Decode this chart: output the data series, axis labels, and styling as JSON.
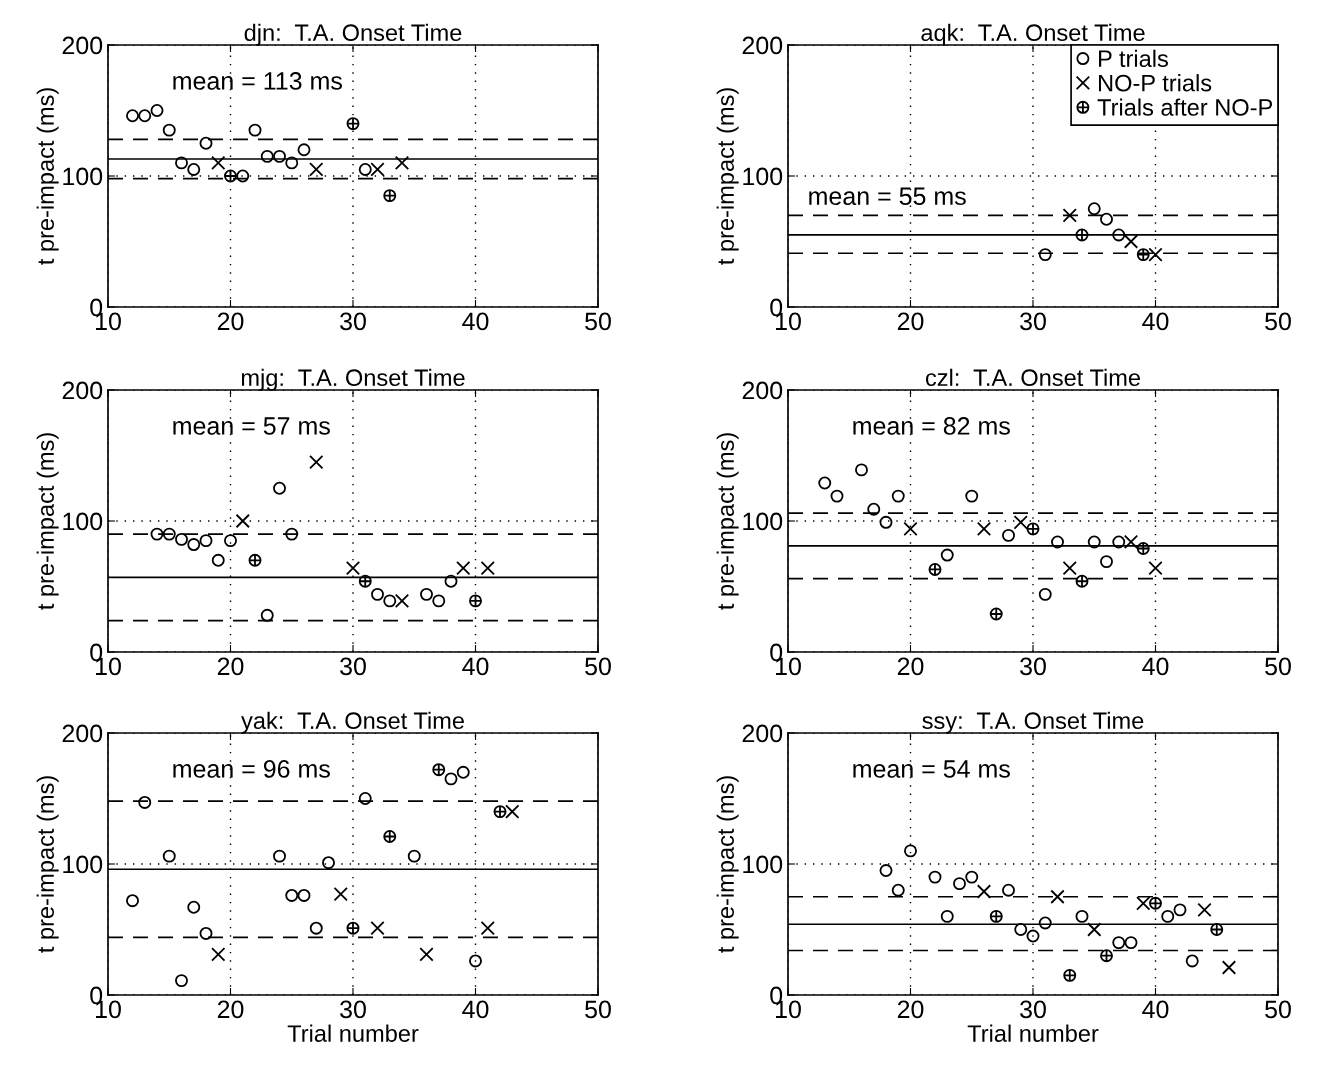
{
  "chart_data": [
    {
      "type": "scatter",
      "title": "djn:  T.A. Onset Time",
      "ylabel": "t pre-impact (ms)",
      "annotations": [
        "mean = 113 ms"
      ],
      "xlim": [
        10,
        50
      ],
      "xticks": [
        10,
        20,
        30,
        40,
        50
      ],
      "ylim": [
        0,
        200
      ],
      "yticks": [
        0,
        100,
        200
      ],
      "grid": true,
      "ref_lines": [
        {
          "axis": "y",
          "value": 113,
          "line_style": "solid"
        },
        {
          "axis": "y",
          "value": 128,
          "line_style": "dashed"
        },
        {
          "axis": "y",
          "value": 98,
          "line_style": "dashed"
        }
      ],
      "series": [
        {
          "marker": "circle",
          "color": "#000000",
          "x": [
            12,
            13,
            14,
            15,
            16,
            17,
            18,
            21,
            22,
            23,
            24,
            25,
            26,
            31
          ],
          "values": [
            146,
            146,
            150,
            135,
            110,
            105,
            125,
            100,
            135,
            115,
            115,
            110,
            120,
            105
          ]
        },
        {
          "marker": "cross",
          "color": "#000000",
          "x": [
            19,
            27,
            32,
            34
          ],
          "values": [
            110,
            105,
            105,
            110
          ]
        },
        {
          "color": "#000000",
          "x": [
            20,
            30,
            33
          ],
          "values": [
            100,
            140,
            85
          ]
        }
      ]
    },
    {
      "type": "scatter",
      "title": "aqk:  T.A. Onset Time",
      "ylabel": "t pre-impact (ms)",
      "annotations": [
        "mean = 55 ms"
      ],
      "xlim": [
        10,
        50
      ],
      "xticks": [
        10,
        20,
        30,
        40,
        50
      ],
      "ylim": [
        0,
        200
      ],
      "yticks": [
        0,
        100,
        200
      ],
      "grid": true,
      "legend": "top right",
      "ref_lines": [
        {
          "axis": "y",
          "value": 55,
          "line_style": "solid"
        },
        {
          "axis": "y",
          "value": 70,
          "line_style": "dashed"
        },
        {
          "axis": "y",
          "value": 41,
          "line_style": "dashed"
        }
      ],
      "series": [
        {
          "name": "P trials",
          "marker": "circle",
          "color": "#000000",
          "x": [
            31,
            35,
            36,
            37
          ],
          "values": [
            40,
            75,
            67,
            55
          ]
        },
        {
          "name": "NO-P trials",
          "marker": "cross",
          "color": "#000000",
          "x": [
            33,
            38,
            40
          ],
          "values": [
            70,
            50,
            40
          ]
        },
        {
          "name": "Trials after NO-P",
          "color": "#000000",
          "x": [
            34,
            39
          ],
          "values": [
            55,
            40
          ]
        }
      ]
    },
    {
      "type": "scatter",
      "title": "mjg:  T.A. Onset Time",
      "ylabel": "t pre-impact (ms)",
      "annotations": [
        "mean = 57 ms"
      ],
      "xlim": [
        10,
        50
      ],
      "xticks": [
        10,
        20,
        30,
        40,
        50
      ],
      "ylim": [
        0,
        200
      ],
      "yticks": [
        0,
        100,
        200
      ],
      "grid": true,
      "ref_lines": [
        {
          "axis": "y",
          "value": 57,
          "line_style": "solid"
        },
        {
          "axis": "y",
          "value": 90,
          "line_style": "dashed"
        },
        {
          "axis": "y",
          "value": 24,
          "line_style": "dashed"
        }
      ],
      "series": [
        {
          "marker": "circle",
          "color": "#000000",
          "x": [
            14,
            15,
            16,
            17,
            18,
            19,
            20,
            23,
            24,
            25,
            32,
            33,
            36,
            37,
            38
          ],
          "values": [
            90,
            90,
            86,
            82,
            85,
            70,
            85,
            28,
            125,
            90,
            44,
            39,
            44,
            39,
            54
          ]
        },
        {
          "marker": "cross",
          "color": "#000000",
          "x": [
            21,
            27,
            30,
            34,
            39,
            41
          ],
          "values": [
            100,
            145,
            64,
            39,
            64,
            64
          ]
        },
        {
          "color": "#000000",
          "x": [
            22,
            31,
            40
          ],
          "values": [
            70,
            54,
            39
          ]
        }
      ]
    },
    {
      "type": "scatter",
      "title": "czl:  T.A. Onset Time",
      "ylabel": "t pre-impact (ms)",
      "annotations": [
        "mean = 82 ms"
      ],
      "xlim": [
        10,
        50
      ],
      "xticks": [
        10,
        20,
        30,
        40,
        50
      ],
      "ylim": [
        0,
        200
      ],
      "yticks": [
        0,
        100,
        200
      ],
      "grid": true,
      "ref_lines": [
        {
          "axis": "y",
          "value": 81,
          "line_style": "solid"
        },
        {
          "axis": "y",
          "value": 106,
          "line_style": "dashed"
        },
        {
          "axis": "y",
          "value": 56,
          "line_style": "dashed"
        }
      ],
      "series": [
        {
          "marker": "circle",
          "color": "#000000",
          "x": [
            13,
            14,
            16,
            17,
            18,
            19,
            23,
            25,
            28,
            31,
            32,
            35,
            36,
            37
          ],
          "values": [
            129,
            119,
            139,
            109,
            99,
            119,
            74,
            119,
            89,
            44,
            84,
            84,
            69,
            84
          ]
        },
        {
          "marker": "cross",
          "color": "#000000",
          "x": [
            20,
            26,
            29,
            33,
            38,
            40
          ],
          "values": [
            94,
            94,
            99,
            64,
            84,
            64
          ]
        },
        {
          "color": "#000000",
          "x": [
            22,
            27,
            30,
            34,
            39
          ],
          "values": [
            63,
            29,
            94,
            54,
            79
          ]
        }
      ]
    },
    {
      "type": "scatter",
      "title": "yak:  T.A. Onset Time",
      "xlabel": "Trial number",
      "ylabel": "t pre-impact (ms)",
      "annotations": [
        "mean = 96 ms"
      ],
      "xlim": [
        10,
        50
      ],
      "xticks": [
        10,
        20,
        30,
        40,
        50
      ],
      "ylim": [
        0,
        200
      ],
      "yticks": [
        0,
        100,
        200
      ],
      "grid": true,
      "ref_lines": [
        {
          "axis": "y",
          "value": 96,
          "line_style": "solid"
        },
        {
          "axis": "y",
          "value": 148,
          "line_style": "dashed"
        },
        {
          "axis": "y",
          "value": 44,
          "line_style": "dashed"
        }
      ],
      "series": [
        {
          "marker": "circle",
          "color": "#000000",
          "x": [
            12,
            13,
            15,
            16,
            17,
            18,
            24,
            25,
            26,
            27,
            28,
            31,
            35,
            38,
            39,
            40
          ],
          "values": [
            72,
            147,
            106,
            11,
            67,
            47,
            106,
            76,
            76,
            51,
            101,
            150,
            106,
            165,
            170,
            26
          ]
        },
        {
          "marker": "cross",
          "color": "#000000",
          "x": [
            19,
            29,
            32,
            36,
            41,
            43
          ],
          "values": [
            31,
            77,
            51,
            31,
            51,
            140
          ]
        },
        {
          "color": "#000000",
          "x": [
            30,
            33,
            37,
            42
          ],
          "values": [
            51,
            121,
            172,
            140
          ]
        }
      ]
    },
    {
      "type": "scatter",
      "title": "ssy:  T.A. Onset Time",
      "xlabel": "Trial number",
      "ylabel": "t pre-impact (ms)",
      "annotations": [
        "mean = 54 ms"
      ],
      "xlim": [
        10,
        50
      ],
      "xticks": [
        10,
        20,
        30,
        40,
        50
      ],
      "ylim": [
        0,
        200
      ],
      "yticks": [
        0,
        100,
        200
      ],
      "grid": true,
      "ref_lines": [
        {
          "axis": "y",
          "value": 54,
          "line_style": "solid"
        },
        {
          "axis": "y",
          "value": 75,
          "line_style": "dashed"
        },
        {
          "axis": "y",
          "value": 34,
          "line_style": "dashed"
        }
      ],
      "series": [
        {
          "marker": "circle",
          "color": "#000000",
          "x": [
            18,
            19,
            20,
            22,
            23,
            24,
            25,
            28,
            29,
            30,
            31,
            34,
            37,
            38,
            41,
            42,
            43
          ],
          "values": [
            95,
            80,
            110,
            90,
            60,
            85,
            90,
            80,
            50,
            45,
            55,
            60,
            40,
            40,
            60,
            65,
            26
          ]
        },
        {
          "marker": "cross",
          "color": "#000000",
          "x": [
            26,
            32,
            35,
            39,
            44,
            46
          ],
          "values": [
            79,
            75,
            50,
            70,
            65,
            21
          ]
        },
        {
          "color": "#000000",
          "x": [
            27,
            33,
            36,
            40,
            45
          ],
          "values": [
            60,
            15,
            30,
            70,
            50
          ]
        }
      ]
    }
  ]
}
